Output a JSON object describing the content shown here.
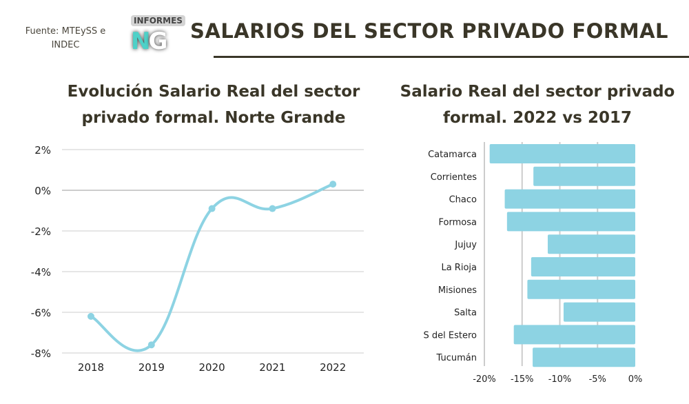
{
  "header": {
    "source": "Fuente: MTEySS e INDEC",
    "logo_tag": "INFORMES",
    "logo_letters": "NG",
    "title": "SALARIOS DEL SECTOR PRIVADO FORMAL"
  },
  "colors": {
    "accent": "#8dd3e3",
    "title": "#3a3628",
    "grid": "#cccccc"
  },
  "chart_data": [
    {
      "type": "line",
      "title": "Evolución Salario Real del sector privado formal. Norte Grande",
      "x": [
        "2018",
        "2019",
        "2020",
        "2021",
        "2022"
      ],
      "values": [
        -6.2,
        -7.6,
        -0.9,
        -0.9,
        0.3
      ],
      "ylim": [
        -8,
        2
      ],
      "yticks": [
        2,
        0,
        -2,
        -4,
        -6,
        -8
      ],
      "ytick_labels": [
        "2%",
        "0%",
        "-2%",
        "-4%",
        "-6%",
        "-8%"
      ],
      "grid": true
    },
    {
      "type": "bar",
      "orientation": "horizontal",
      "title": "Salario Real del sector privado formal. 2022 vs 2017",
      "categories": [
        "Catamarca",
        "Corrientes",
        "Chaco",
        "Formosa",
        "Jujuy",
        "La Rioja",
        "Misiones",
        "Salta",
        "S del Estero",
        "Tucumán"
      ],
      "values": [
        -19.3,
        -13.5,
        -17.3,
        -17.0,
        -11.6,
        -13.8,
        -14.3,
        -9.5,
        -16.1,
        -13.6
      ],
      "xlim": [
        -20,
        0
      ],
      "xticks": [
        -20,
        -15,
        -10,
        -5,
        0
      ],
      "xtick_labels": [
        "-20%",
        "-15%",
        "-10%",
        "-5%",
        "0%"
      ],
      "grid": true
    }
  ]
}
